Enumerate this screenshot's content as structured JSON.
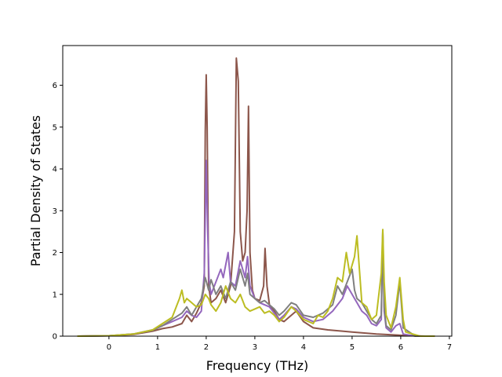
{
  "chart_data": {
    "type": "line",
    "title": "",
    "xlabel": "Frequency (THz)",
    "ylabel": "Partial Density of States",
    "xlim": [
      -0.95,
      7.05
    ],
    "ylim": [
      0,
      6.95
    ],
    "xticks": [
      0,
      1,
      2,
      3,
      4,
      5,
      6,
      7
    ],
    "yticks": [
      0,
      1,
      2,
      3,
      4,
      5,
      6
    ],
    "grid": false,
    "series": [
      {
        "color": "#8c564b",
        "points": [
          [
            -0.65,
            0
          ],
          [
            0,
            0.01
          ],
          [
            0.5,
            0.04
          ],
          [
            0.9,
            0.12
          ],
          [
            1.1,
            0.18
          ],
          [
            1.3,
            0.22
          ],
          [
            1.5,
            0.3
          ],
          [
            1.6,
            0.5
          ],
          [
            1.7,
            0.35
          ],
          [
            1.8,
            0.55
          ],
          [
            1.9,
            0.8
          ],
          [
            1.96,
            1.2
          ],
          [
            1.98,
            4.9
          ],
          [
            2.0,
            6.25
          ],
          [
            2.02,
            5.0
          ],
          [
            2.05,
            1.2
          ],
          [
            2.1,
            0.8
          ],
          [
            2.2,
            0.9
          ],
          [
            2.3,
            1.1
          ],
          [
            2.4,
            0.8
          ],
          [
            2.5,
            1.2
          ],
          [
            2.58,
            2.5
          ],
          [
            2.62,
            6.65
          ],
          [
            2.66,
            6.1
          ],
          [
            2.7,
            2.5
          ],
          [
            2.75,
            1.8
          ],
          [
            2.8,
            2.0
          ],
          [
            2.84,
            3.0
          ],
          [
            2.87,
            5.5
          ],
          [
            2.9,
            2.0
          ],
          [
            2.95,
            1.1
          ],
          [
            3.0,
            0.9
          ],
          [
            3.1,
            0.85
          ],
          [
            3.18,
            1.2
          ],
          [
            3.21,
            2.1
          ],
          [
            3.25,
            1.2
          ],
          [
            3.3,
            0.75
          ],
          [
            3.4,
            0.6
          ],
          [
            3.5,
            0.4
          ],
          [
            3.6,
            0.35
          ],
          [
            3.75,
            0.5
          ],
          [
            3.85,
            0.6
          ],
          [
            4.0,
            0.35
          ],
          [
            4.2,
            0.2
          ],
          [
            4.5,
            0.15
          ],
          [
            4.8,
            0.12
          ],
          [
            5.0,
            0.1
          ],
          [
            5.2,
            0.08
          ],
          [
            5.5,
            0.05
          ],
          [
            6.0,
            0.02
          ],
          [
            6.5,
            0
          ]
        ]
      },
      {
        "color": "#9467bd",
        "points": [
          [
            -0.65,
            0
          ],
          [
            0,
            0.01
          ],
          [
            0.5,
            0.05
          ],
          [
            0.9,
            0.15
          ],
          [
            1.1,
            0.25
          ],
          [
            1.3,
            0.35
          ],
          [
            1.5,
            0.45
          ],
          [
            1.6,
            0.6
          ],
          [
            1.7,
            0.5
          ],
          [
            1.8,
            0.45
          ],
          [
            1.9,
            0.6
          ],
          [
            1.96,
            1.5
          ],
          [
            2.0,
            4.2
          ],
          [
            2.03,
            2.5
          ],
          [
            2.06,
            1.3
          ],
          [
            2.1,
            1.0
          ],
          [
            2.2,
            1.3
          ],
          [
            2.3,
            1.6
          ],
          [
            2.35,
            1.4
          ],
          [
            2.45,
            2.0
          ],
          [
            2.5,
            1.3
          ],
          [
            2.6,
            1.2
          ],
          [
            2.7,
            1.8
          ],
          [
            2.8,
            1.4
          ],
          [
            2.85,
            1.9
          ],
          [
            2.9,
            1.2
          ],
          [
            3.0,
            0.9
          ],
          [
            3.1,
            0.8
          ],
          [
            3.2,
            0.75
          ],
          [
            3.3,
            0.7
          ],
          [
            3.4,
            0.55
          ],
          [
            3.5,
            0.4
          ],
          [
            3.6,
            0.5
          ],
          [
            3.75,
            0.7
          ],
          [
            3.85,
            0.65
          ],
          [
            4.0,
            0.45
          ],
          [
            4.2,
            0.35
          ],
          [
            4.4,
            0.4
          ],
          [
            4.6,
            0.6
          ],
          [
            4.8,
            0.9
          ],
          [
            4.9,
            1.2
          ],
          [
            5.0,
            1.0
          ],
          [
            5.1,
            0.8
          ],
          [
            5.2,
            0.6
          ],
          [
            5.3,
            0.5
          ],
          [
            5.4,
            0.3
          ],
          [
            5.5,
            0.25
          ],
          [
            5.6,
            0.4
          ],
          [
            5.63,
            2.5
          ],
          [
            5.66,
            0.6
          ],
          [
            5.7,
            0.2
          ],
          [
            5.8,
            0.1
          ],
          [
            5.9,
            0.25
          ],
          [
            5.98,
            0.3
          ],
          [
            6.05,
            0.05
          ],
          [
            6.3,
            0
          ],
          [
            6.7,
            0
          ]
        ]
      },
      {
        "color": "#7f7f7f",
        "points": [
          [
            -0.65,
            0
          ],
          [
            0,
            0.01
          ],
          [
            0.5,
            0.05
          ],
          [
            0.9,
            0.14
          ],
          [
            1.1,
            0.25
          ],
          [
            1.3,
            0.4
          ],
          [
            1.5,
            0.55
          ],
          [
            1.6,
            0.7
          ],
          [
            1.7,
            0.5
          ],
          [
            1.8,
            0.7
          ],
          [
            1.9,
            0.9
          ],
          [
            1.98,
            1.4
          ],
          [
            2.05,
            1.1
          ],
          [
            2.1,
            1.35
          ],
          [
            2.2,
            1.0
          ],
          [
            2.3,
            1.2
          ],
          [
            2.4,
            0.9
          ],
          [
            2.5,
            1.3
          ],
          [
            2.6,
            1.1
          ],
          [
            2.7,
            1.6
          ],
          [
            2.8,
            1.2
          ],
          [
            2.85,
            1.5
          ],
          [
            2.9,
            1.0
          ],
          [
            3.0,
            0.9
          ],
          [
            3.1,
            0.8
          ],
          [
            3.2,
            0.85
          ],
          [
            3.3,
            0.75
          ],
          [
            3.4,
            0.65
          ],
          [
            3.5,
            0.5
          ],
          [
            3.6,
            0.6
          ],
          [
            3.75,
            0.8
          ],
          [
            3.85,
            0.75
          ],
          [
            4.0,
            0.5
          ],
          [
            4.2,
            0.45
          ],
          [
            4.4,
            0.55
          ],
          [
            4.6,
            0.75
          ],
          [
            4.7,
            1.2
          ],
          [
            4.8,
            1.0
          ],
          [
            4.9,
            1.3
          ],
          [
            5.0,
            1.6
          ],
          [
            5.05,
            1.1
          ],
          [
            5.1,
            0.9
          ],
          [
            5.2,
            0.8
          ],
          [
            5.3,
            0.6
          ],
          [
            5.4,
            0.4
          ],
          [
            5.5,
            0.3
          ],
          [
            5.6,
            0.5
          ],
          [
            5.63,
            2.5
          ],
          [
            5.66,
            0.7
          ],
          [
            5.7,
            0.25
          ],
          [
            5.8,
            0.15
          ],
          [
            5.9,
            0.5
          ],
          [
            5.98,
            1.3
          ],
          [
            6.05,
            0.2
          ],
          [
            6.3,
            0
          ],
          [
            6.7,
            0
          ]
        ]
      },
      {
        "color": "#bcbd22",
        "points": [
          [
            -0.65,
            0
          ],
          [
            0,
            0.01
          ],
          [
            0.5,
            0.05
          ],
          [
            0.9,
            0.15
          ],
          [
            1.1,
            0.3
          ],
          [
            1.3,
            0.45
          ],
          [
            1.45,
            0.9
          ],
          [
            1.5,
            1.1
          ],
          [
            1.55,
            0.8
          ],
          [
            1.6,
            0.9
          ],
          [
            1.7,
            0.8
          ],
          [
            1.8,
            0.7
          ],
          [
            1.9,
            0.75
          ],
          [
            1.98,
            1.0
          ],
          [
            2.05,
            0.9
          ],
          [
            2.1,
            0.75
          ],
          [
            2.2,
            0.6
          ],
          [
            2.3,
            0.8
          ],
          [
            2.4,
            1.2
          ],
          [
            2.5,
            0.9
          ],
          [
            2.6,
            0.8
          ],
          [
            2.7,
            1.0
          ],
          [
            2.8,
            0.7
          ],
          [
            2.9,
            0.6
          ],
          [
            3.0,
            0.65
          ],
          [
            3.1,
            0.7
          ],
          [
            3.2,
            0.55
          ],
          [
            3.3,
            0.6
          ],
          [
            3.4,
            0.5
          ],
          [
            3.5,
            0.35
          ],
          [
            3.6,
            0.45
          ],
          [
            3.75,
            0.7
          ],
          [
            3.85,
            0.6
          ],
          [
            4.0,
            0.4
          ],
          [
            4.2,
            0.3
          ],
          [
            4.3,
            0.5
          ],
          [
            4.4,
            0.45
          ],
          [
            4.5,
            0.6
          ],
          [
            4.6,
            0.9
          ],
          [
            4.7,
            1.4
          ],
          [
            4.8,
            1.3
          ],
          [
            4.88,
            2.0
          ],
          [
            4.95,
            1.5
          ],
          [
            5.05,
            1.9
          ],
          [
            5.1,
            2.4
          ],
          [
            5.15,
            1.6
          ],
          [
            5.2,
            0.8
          ],
          [
            5.3,
            0.7
          ],
          [
            5.4,
            0.4
          ],
          [
            5.5,
            0.5
          ],
          [
            5.6,
            1.5
          ],
          [
            5.63,
            2.55
          ],
          [
            5.66,
            1.3
          ],
          [
            5.7,
            0.5
          ],
          [
            5.8,
            0.2
          ],
          [
            5.9,
            0.7
          ],
          [
            5.98,
            1.4
          ],
          [
            6.05,
            0.4
          ],
          [
            6.1,
            0.1
          ],
          [
            6.4,
            0
          ],
          [
            6.7,
            0
          ]
        ]
      }
    ]
  }
}
